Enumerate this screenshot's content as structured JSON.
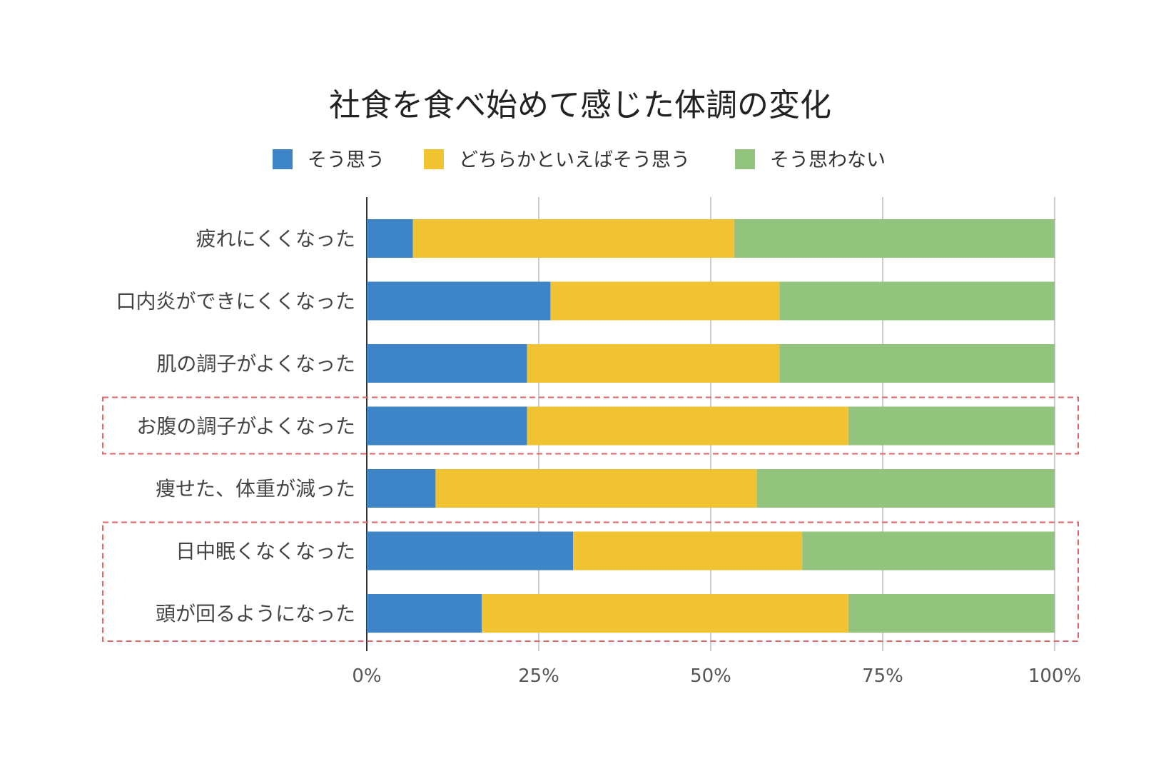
{
  "chart_data": {
    "type": "bar",
    "orientation": "horizontal",
    "stacked": "percent",
    "title": "社食を食べ始めて感じた体調の変化",
    "categories": [
      "疲れにくくなった",
      "口内炎ができにくくなった",
      "肌の調子がよくなった",
      "お腹の調子がよくなった",
      "痩せた、体重が減った",
      "日中眠くなくなった",
      "頭が回るようになった"
    ],
    "series": [
      {
        "name": "そう思う",
        "color": "#3d85c6",
        "values": [
          6.7,
          26.7,
          23.3,
          23.3,
          10.0,
          30.0,
          16.7
        ]
      },
      {
        "name": "どちらかといえばそう思う",
        "color": "#f1c232",
        "values": [
          46.7,
          33.3,
          36.7,
          46.7,
          46.7,
          33.3,
          53.3
        ]
      },
      {
        "name": "そう思わない",
        "color": "#93c47d",
        "values": [
          46.6,
          40.0,
          40.0,
          30.0,
          43.3,
          36.7,
          30.0
        ]
      }
    ],
    "xlim": [
      0,
      100
    ],
    "xticks": [
      "0%",
      "25%",
      "50%",
      "75%",
      "100%"
    ],
    "grid": true,
    "legend": "top",
    "highlight_color": "#e06666",
    "highlighted_groups": [
      [
        "お腹の調子がよくなった"
      ],
      [
        "日中眠くなくなった",
        "頭が回るようになった"
      ]
    ]
  }
}
